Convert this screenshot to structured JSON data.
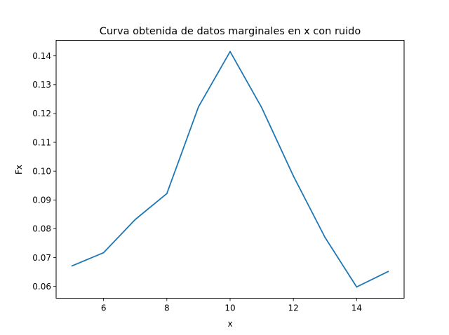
{
  "chart_data": {
    "type": "line",
    "title": "Curva obtenida de datos marginales en x con ruido",
    "xlabel": "x",
    "ylabel": "Fx",
    "x": [
      5,
      6,
      7,
      8,
      9,
      10,
      11,
      12,
      13,
      14,
      15
    ],
    "series": [
      {
        "values": [
          0.0671,
          0.0717,
          0.0832,
          0.0922,
          0.1223,
          0.1415,
          0.122,
          0.0983,
          0.077,
          0.0598,
          0.0652
        ],
        "color": "#1f77b4"
      }
    ],
    "xlim": [
      4.5,
      15.5
    ],
    "ylim": [
      0.0559,
      0.1454
    ],
    "xticks": [
      6,
      8,
      10,
      12,
      14
    ],
    "xtick_labels": [
      "6",
      "8",
      "10",
      "12",
      "14"
    ],
    "yticks": [
      0.06,
      0.07,
      0.08,
      0.09,
      0.1,
      0.11,
      0.12,
      0.13,
      0.14
    ],
    "ytick_labels": [
      "0.06",
      "0.07",
      "0.08",
      "0.09",
      "0.10",
      "0.11",
      "0.12",
      "0.13",
      "0.14"
    ],
    "grid": false,
    "legend": "none"
  }
}
